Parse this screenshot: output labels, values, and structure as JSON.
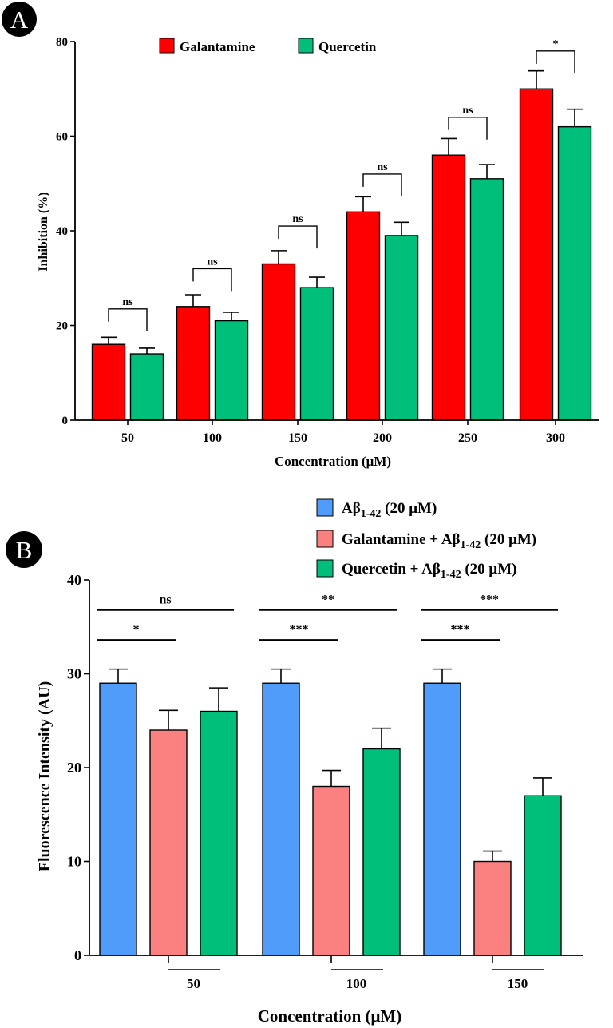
{
  "panels": {
    "a": {
      "letter": "A"
    },
    "b": {
      "letter": "B"
    }
  },
  "chart_data": [
    {
      "type": "bar",
      "panel": "A",
      "title": "",
      "xlabel": "Concentration (μM)",
      "ylabel": "Inhibition (%)",
      "ylim": [
        0,
        80
      ],
      "yticks": [
        0,
        20,
        40,
        60,
        80
      ],
      "categories": [
        "50",
        "100",
        "150",
        "200",
        "250",
        "300"
      ],
      "legend_position": "top",
      "series": [
        {
          "name": "Galantamine",
          "color": "#ff0000",
          "values": [
            16,
            24,
            33,
            44,
            56,
            70
          ],
          "errors": [
            1.5,
            2.5,
            2.8,
            3.2,
            3.5,
            3.8
          ]
        },
        {
          "name": "Quercetin",
          "color": "#00bf7a",
          "values": [
            14,
            21,
            28,
            39,
            51,
            62
          ],
          "errors": [
            1.2,
            1.8,
            2.2,
            2.8,
            3.0,
            3.7
          ]
        }
      ],
      "significance": [
        {
          "category": "50",
          "label": "ns",
          "level": 23.5
        },
        {
          "category": "100",
          "label": "ns",
          "level": 32
        },
        {
          "category": "150",
          "label": "ns",
          "level": 41
        },
        {
          "category": "200",
          "label": "ns",
          "level": 52
        },
        {
          "category": "250",
          "label": "ns",
          "level": 64
        },
        {
          "category": "300",
          "label": "*",
          "level": 78
        }
      ]
    },
    {
      "type": "bar",
      "panel": "B",
      "title": "",
      "xlabel": "Concentration (μM)",
      "ylabel": "Fluorescence Intensity (AU)",
      "ylim": [
        0,
        40
      ],
      "yticks": [
        0,
        10,
        20,
        30,
        40
      ],
      "categories": [
        "50",
        "100",
        "150"
      ],
      "legend_position": "top-right",
      "series": [
        {
          "name": "Aβ",
          "sub": "1-42",
          "suffix": " (20 μM)",
          "color": "#4f9cfa",
          "values": [
            29,
            29,
            29
          ],
          "errors": [
            1.5,
            1.5,
            1.5
          ]
        },
        {
          "name": "Galantamine + Aβ",
          "sub": "1-42",
          "suffix": " (20 μM)",
          "color": "#fb8080",
          "values": [
            24,
            18,
            10
          ],
          "errors": [
            2.1,
            1.7,
            1.1
          ]
        },
        {
          "name": "Quercetin + Aβ",
          "sub": "1-42",
          "suffix": " (20 μM)",
          "color": "#00bf7a",
          "values": [
            26,
            22,
            17
          ],
          "errors": [
            2.5,
            2.2,
            1.9
          ]
        }
      ],
      "significance": [
        {
          "category": "50",
          "from": 0,
          "to": 2,
          "label": "ns",
          "level": 36.8
        },
        {
          "category": "50",
          "from": 0,
          "to": 1,
          "label": "*",
          "level": 33.6
        },
        {
          "category": "100",
          "from": 0,
          "to": 2,
          "label": "**",
          "level": 36.8
        },
        {
          "category": "100",
          "from": 0,
          "to": 1,
          "label": "***",
          "level": 33.6
        },
        {
          "category": "150",
          "from": 0,
          "to": 2,
          "label": "***",
          "level": 36.8
        },
        {
          "category": "150",
          "from": 0,
          "to": 1,
          "label": "***",
          "level": 33.6
        }
      ]
    }
  ]
}
